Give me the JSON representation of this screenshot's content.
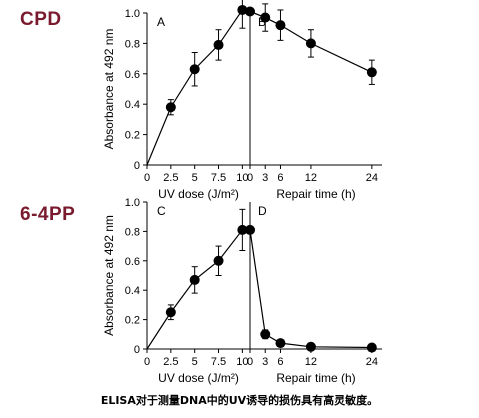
{
  "row_labels": [
    "CPD",
    "6-4PP"
  ],
  "caption": "ELISA对于测量DNA中的UV诱导的损伤具有高灵敏度。",
  "chart_data": [
    {
      "type": "scatter",
      "panel": "A",
      "xlabel": "UV dose (J/m²)",
      "ylabel": "Absorbance at 492 nm",
      "xlim": [
        0,
        10.8
      ],
      "ylim": [
        0,
        1.0
      ],
      "xticks": [
        0,
        2.5,
        5,
        7.5,
        10
      ],
      "xticklabels": [
        "0",
        "2.5",
        "5",
        "7.5",
        "10"
      ],
      "yticks": [
        0,
        0.2,
        0.4,
        0.6,
        0.8,
        1.0
      ],
      "yticklabels": [
        "0",
        "0.2",
        "0.4",
        "0.6",
        "0.8",
        "1.0"
      ],
      "x": [
        0,
        2.5,
        5,
        7.5,
        10
      ],
      "y": [
        0,
        0.38,
        0.63,
        0.79,
        1.02
      ],
      "yerr": [
        0,
        0.05,
        0.11,
        0.1,
        0.12
      ]
    },
    {
      "type": "scatter",
      "panel": "B",
      "xlabel": "Repair time (h)",
      "xlim": [
        0,
        26
      ],
      "ylim": [
        0,
        1.0
      ],
      "xticks": [
        0,
        3,
        6,
        12,
        24
      ],
      "xticklabels": [
        "0",
        "3",
        "6",
        "12",
        "24"
      ],
      "x": [
        0,
        3,
        6,
        12,
        24
      ],
      "y": [
        1.01,
        0.97,
        0.92,
        0.8,
        0.61
      ],
      "yerr": [
        0,
        0.09,
        0.1,
        0.09,
        0.08
      ]
    },
    {
      "type": "scatter",
      "panel": "C",
      "xlabel": "UV dose (J/m²)",
      "ylabel": "Absorbance at 492 nm",
      "xlim": [
        0,
        10.8
      ],
      "ylim": [
        0,
        1.0
      ],
      "xticks": [
        0,
        2.5,
        5,
        7.5,
        10
      ],
      "xticklabels": [
        "0",
        "2.5",
        "5",
        "7.5",
        "10"
      ],
      "yticks": [
        0,
        0.2,
        0.4,
        0.6,
        0.8,
        1.0
      ],
      "yticklabels": [
        "0",
        "0.2",
        "0.4",
        "0.6",
        "0.8",
        "1.0"
      ],
      "x": [
        0,
        2.5,
        5,
        7.5,
        10
      ],
      "y": [
        0,
        0.25,
        0.47,
        0.6,
        0.81
      ],
      "yerr": [
        0,
        0.05,
        0.09,
        0.1,
        0.14
      ]
    },
    {
      "type": "scatter",
      "panel": "D",
      "xlabel": "Repair time (h)",
      "xlim": [
        0,
        26
      ],
      "ylim": [
        0,
        1.0
      ],
      "xticks": [
        0,
        3,
        6,
        12,
        24
      ],
      "xticklabels": [
        "0",
        "3",
        "6",
        "12",
        "24"
      ],
      "x": [
        0,
        3,
        6,
        12,
        24
      ],
      "y": [
        0.81,
        0.1,
        0.04,
        0.015,
        0.01
      ],
      "yerr": [
        0,
        0.03,
        0.02,
        0.005,
        0.005
      ]
    }
  ]
}
